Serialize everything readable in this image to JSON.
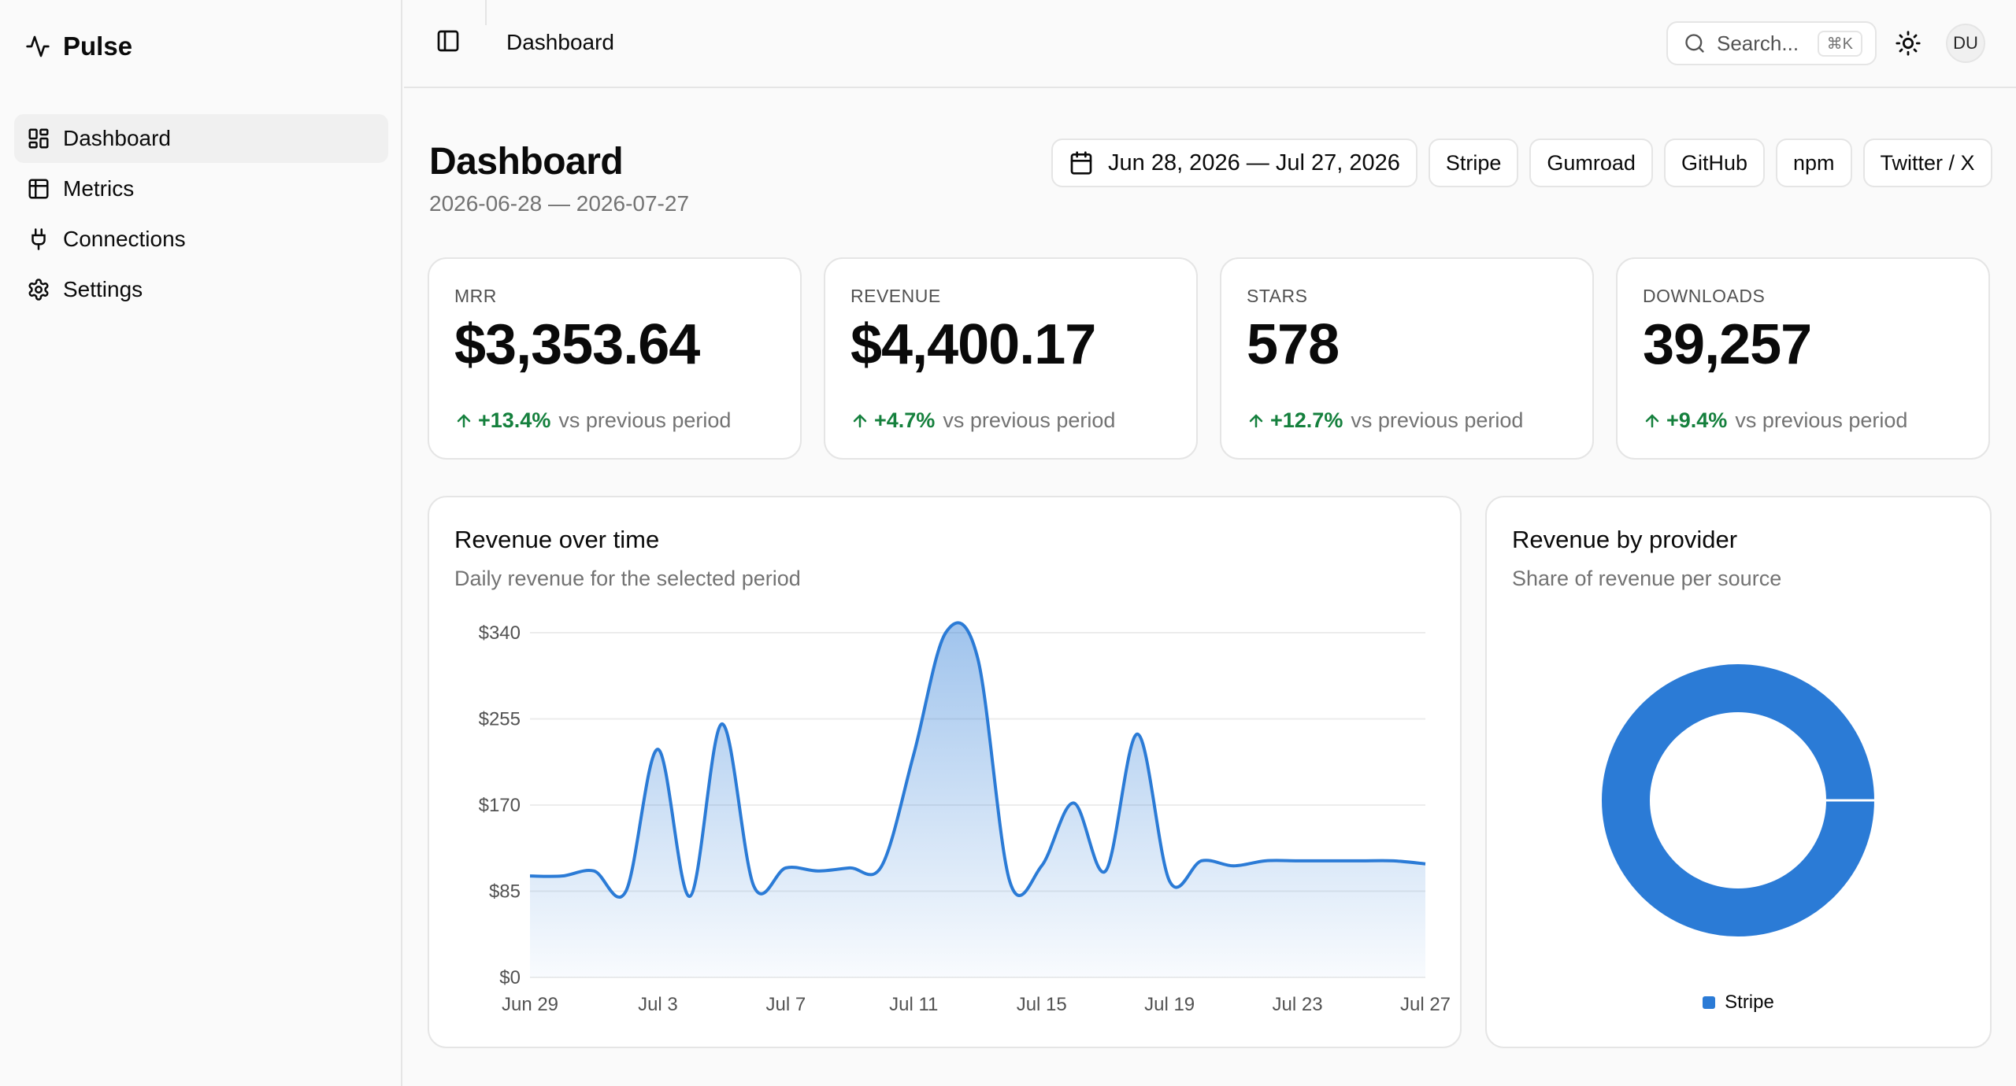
{
  "app": {
    "name": "Pulse"
  },
  "sidebar": {
    "items": [
      {
        "label": "Dashboard",
        "icon": "dashboard-icon",
        "active": true
      },
      {
        "label": "Metrics",
        "icon": "table-icon",
        "active": false
      },
      {
        "label": "Connections",
        "icon": "plug-icon",
        "active": false
      },
      {
        "label": "Settings",
        "icon": "gear-icon",
        "active": false
      }
    ]
  },
  "topbar": {
    "breadcrumb": "Dashboard",
    "search_placeholder": "Search...",
    "search_shortcut": "⌘K",
    "avatar_initials": "DU"
  },
  "page": {
    "title": "Dashboard",
    "subtitle": "2026-06-28 — 2026-07-27",
    "date_range": "Jun 28, 2026 — Jul 27, 2026",
    "providers": [
      "Stripe",
      "Gumroad",
      "GitHub",
      "npm",
      "Twitter / X"
    ]
  },
  "kpis": [
    {
      "label": "MRR",
      "value": "$3,353.64",
      "change": "+13.4%",
      "suffix": "vs previous period"
    },
    {
      "label": "REVENUE",
      "value": "$4,400.17",
      "change": "+4.7%",
      "suffix": "vs previous period"
    },
    {
      "label": "STARS",
      "value": "578",
      "change": "+12.7%",
      "suffix": "vs previous period"
    },
    {
      "label": "DOWNLOADS",
      "value": "39,257",
      "change": "+9.4%",
      "suffix": "vs previous period"
    }
  ],
  "colors": {
    "accent": "#2b7bd6",
    "positive": "#15803d"
  },
  "revenue_card": {
    "title": "Revenue over time",
    "subtitle": "Daily revenue for the selected period"
  },
  "provider_card": {
    "title": "Revenue by provider",
    "subtitle": "Share of revenue per source"
  },
  "chart_data": [
    {
      "type": "area",
      "title": "Revenue over time",
      "x": [
        "Jun 29",
        "Jun 30",
        "Jul 1",
        "Jul 2",
        "Jul 3",
        "Jul 4",
        "Jul 5",
        "Jul 6",
        "Jul 7",
        "Jul 8",
        "Jul 9",
        "Jul 10",
        "Jul 11",
        "Jul 12",
        "Jul 13",
        "Jul 14",
        "Jul 15",
        "Jul 16",
        "Jul 17",
        "Jul 18",
        "Jul 19",
        "Jul 20",
        "Jul 21",
        "Jul 22",
        "Jul 23",
        "Jul 24",
        "Jul 25",
        "Jul 26",
        "Jul 27"
      ],
      "x_tick_labels": [
        "Jun 29",
        "Jul 3",
        "Jul 7",
        "Jul 11",
        "Jul 15",
        "Jul 19",
        "Jul 23",
        "Jul 27"
      ],
      "series": [
        {
          "values": [
            100,
            100,
            105,
            85,
            225,
            80,
            250,
            90,
            108,
            105,
            108,
            110,
            220,
            340,
            315,
            95,
            110,
            172,
            105,
            240,
            95,
            115,
            110,
            115,
            115,
            115,
            115,
            115,
            112
          ]
        }
      ],
      "y_ticks": [
        "$0",
        "$85",
        "$170",
        "$255",
        "$340"
      ],
      "ylim": [
        0,
        340
      ],
      "grid": true
    },
    {
      "type": "pie",
      "title": "Revenue by provider",
      "categories": [
        "Stripe"
      ],
      "values": [
        100
      ],
      "legend": "bottom"
    }
  ]
}
